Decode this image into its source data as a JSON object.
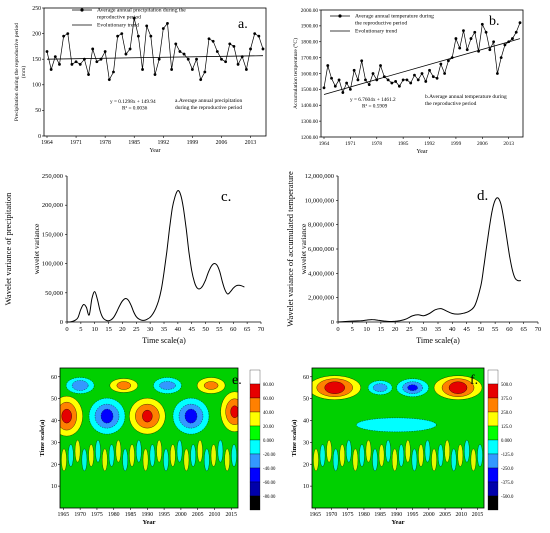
{
  "chart_data": [
    {
      "id": "a",
      "type": "line",
      "panel_label": "a.",
      "x": [
        1964,
        1965,
        1966,
        1967,
        1968,
        1969,
        1970,
        1971,
        1972,
        1973,
        1974,
        1975,
        1976,
        1977,
        1978,
        1979,
        1980,
        1981,
        1982,
        1983,
        1984,
        1985,
        1986,
        1987,
        1988,
        1989,
        1990,
        1991,
        1992,
        1993,
        1994,
        1995,
        1996,
        1997,
        1998,
        1999,
        2000,
        2001,
        2002,
        2003,
        2004,
        2005,
        2006,
        2007,
        2008,
        2009,
        2010,
        2011,
        2012,
        2013,
        2014,
        2015,
        2016
      ],
      "series": [
        {
          "name": "Average annual precipitation during the reproductive period",
          "values": [
            165,
            130,
            155,
            140,
            195,
            200,
            140,
            145,
            140,
            150,
            120,
            170,
            145,
            150,
            165,
            110,
            125,
            195,
            200,
            160,
            170,
            230,
            195,
            130,
            215,
            195,
            120,
            150,
            210,
            220,
            130,
            180,
            165,
            160,
            150,
            130,
            150,
            110,
            125,
            190,
            185,
            165,
            150,
            145,
            180,
            175,
            140,
            155,
            130,
            170,
            200,
            195,
            170
          ]
        },
        {
          "name": "Evolutionary trend",
          "fit": {
            "slope": 0.1298,
            "intercept": 149.94
          }
        }
      ],
      "ylabel": "Precipitation during the reproductive period (mm)",
      "xlabel": "Year",
      "ylim": [
        0,
        250
      ],
      "yticks": [
        "0",
        "50",
        "100",
        "150",
        "200",
        "250"
      ],
      "xticks": [
        "1964",
        "1971",
        "1978",
        "1985",
        "1992",
        "1999",
        "2006",
        "2013"
      ],
      "equation": "y = 0.1298x + 149.94",
      "r2": "R² = 0.0036",
      "annotation": "a.Average annual precipitation during the reproductive period",
      "legend": "top-left"
    },
    {
      "id": "b",
      "type": "line",
      "panel_label": "b.",
      "x": [
        1964,
        1965,
        1966,
        1967,
        1968,
        1969,
        1970,
        1971,
        1972,
        1973,
        1974,
        1975,
        1976,
        1977,
        1978,
        1979,
        1980,
        1981,
        1982,
        1983,
        1984,
        1985,
        1986,
        1987,
        1988,
        1989,
        1990,
        1991,
        1992,
        1993,
        1994,
        1995,
        1996,
        1997,
        1998,
        1999,
        2000,
        2001,
        2002,
        2003,
        2004,
        2005,
        2006,
        2007,
        2008,
        2009,
        2010,
        2011,
        2012,
        2013,
        2014,
        2015,
        2016
      ],
      "series": [
        {
          "name": "Average annual temperature during the reproductive period",
          "values": [
            1510,
            1650,
            1570,
            1520,
            1560,
            1480,
            1540,
            1500,
            1620,
            1560,
            1680,
            1560,
            1530,
            1600,
            1560,
            1650,
            1580,
            1560,
            1540,
            1550,
            1520,
            1560,
            1560,
            1540,
            1590,
            1560,
            1600,
            1550,
            1620,
            1580,
            1570,
            1660,
            1600,
            1680,
            1700,
            1820,
            1760,
            1870,
            1750,
            1820,
            1860,
            1740,
            1910,
            1860,
            1750,
            1800,
            1600,
            1700,
            1780,
            1800,
            1820,
            1860,
            1920
          ]
        },
        {
          "name": "Evolutionary trend",
          "fit": {
            "slope": 6.7604,
            "intercept": 1461.2
          }
        }
      ],
      "ylabel": "Accumulation temperature (°C)",
      "xlabel": "Year",
      "ylim": [
        1200,
        2000
      ],
      "yticks": [
        "1200.00",
        "1300.00",
        "1400.00",
        "1500.00",
        "1600.00",
        "1700.00",
        "1800.00",
        "1900.00",
        "2000.00"
      ],
      "xticks": [
        "1964",
        "1971",
        "1978",
        "1985",
        "1992",
        "1999",
        "2006",
        "2013"
      ],
      "equation": "y = 6.7604x + 1461.2",
      "r2": "R² = 0.5909",
      "annotation": "b.Average annual temperature during the reproductive period",
      "legend": "top-left"
    },
    {
      "id": "c",
      "type": "line",
      "panel_label": "c.",
      "x": [
        0,
        1,
        2,
        3,
        4,
        5,
        6,
        7,
        8,
        9,
        10,
        11,
        12,
        13,
        14,
        15,
        16,
        17,
        18,
        19,
        20,
        21,
        22,
        23,
        24,
        25,
        26,
        27,
        28,
        29,
        30,
        31,
        32,
        33,
        34,
        35,
        36,
        37,
        38,
        39,
        40,
        41,
        42,
        43,
        44,
        45,
        46,
        47,
        48,
        49,
        50,
        51,
        52,
        53,
        54,
        55,
        56,
        57,
        58,
        59,
        60,
        61,
        62,
        63,
        64
      ],
      "series": [
        {
          "name": "wavelet variance",
          "values": [
            0,
            0,
            1000,
            3000,
            8000,
            22000,
            30000,
            25000,
            12000,
            40000,
            52000,
            38000,
            18000,
            7000,
            3000,
            2000,
            4000,
            9000,
            18000,
            28000,
            36000,
            40000,
            38000,
            30000,
            18000,
            9000,
            5000,
            3000,
            3000,
            5000,
            8000,
            14000,
            23000,
            36000,
            55000,
            85000,
            120000,
            160000,
            195000,
            215000,
            225000,
            218000,
            195000,
            160000,
            120000,
            88000,
            68000,
            58000,
            57000,
            62000,
            72000,
            85000,
            95000,
            100000,
            98000,
            88000,
            70000,
            55000,
            48000,
            52000,
            58000,
            62000,
            63000,
            62000,
            60000
          ]
        }
      ],
      "ylabel": "wavelet variance",
      "ylabel_outer": "Wavelet variance of precipitation",
      "xlabel": "Time scale(a)",
      "ylim": [
        0,
        250000
      ],
      "xlim": [
        0,
        70
      ],
      "yticks": [
        "0",
        "50,000",
        "100,000",
        "150,000",
        "200,000",
        "250,000"
      ],
      "xticks": [
        "0",
        "5",
        "10",
        "15",
        "20",
        "25",
        "30",
        "35",
        "40",
        "45",
        "50",
        "55",
        "60",
        "65",
        "70"
      ]
    },
    {
      "id": "d",
      "type": "line",
      "panel_label": "d.",
      "x": [
        0,
        2,
        4,
        6,
        8,
        10,
        12,
        14,
        16,
        18,
        20,
        22,
        24,
        26,
        28,
        30,
        32,
        34,
        36,
        38,
        40,
        42,
        44,
        46,
        48,
        50,
        51,
        52,
        53,
        54,
        55,
        56,
        57,
        58,
        59,
        60,
        61,
        62,
        63,
        64
      ],
      "series": [
        {
          "name": "wavelet variance",
          "values": [
            0,
            30000,
            60000,
            80000,
            100000,
            160000,
            200000,
            150000,
            80000,
            40000,
            60000,
            120000,
            260000,
            500000,
            600000,
            520000,
            700000,
            1000000,
            1100000,
            900000,
            700000,
            650000,
            720000,
            900000,
            1400000,
            3000000,
            4500000,
            6200000,
            7800000,
            9200000,
            10000000,
            10200000,
            9700000,
            8500000,
            7000000,
            5500000,
            4300000,
            3600000,
            3400000,
            3400000
          ]
        }
      ],
      "ylabel": "wavelet variance",
      "ylabel_outer": "Wavelet variance of accumulated temperature",
      "xlabel": "Time scale(a)",
      "ylim": [
        0,
        12000000
      ],
      "xlim": [
        0,
        70
      ],
      "yticks": [
        "0",
        "2,000,000",
        "4,000,000",
        "6,000,000",
        "8,000,000",
        "10,000,000",
        "12,000,000"
      ],
      "xticks": [
        "0",
        "5",
        "10",
        "15",
        "20",
        "25",
        "30",
        "35",
        "40",
        "45",
        "50",
        "55",
        "60",
        "65",
        "70"
      ]
    },
    {
      "id": "e",
      "type": "heatmap",
      "panel_label": "e.",
      "xlabel": "Year",
      "ylabel": "Time scale(a)",
      "xticks": [
        "1965",
        "1970",
        "1975",
        "1980",
        "1985",
        "1990",
        "1995",
        "2000",
        "2005",
        "2010",
        "2015"
      ],
      "yticks": [
        "10",
        "20",
        "30",
        "40",
        "50",
        "60"
      ],
      "colorbar": [
        "80.00",
        "60.00",
        "40.00",
        "20.00",
        "0.000",
        "-20.00",
        "-40.00",
        "-60.00",
        "-80.00"
      ],
      "colorbar_colors": [
        "#ffffff",
        "#e60000",
        "#ff8000",
        "#ffff00",
        "#00ff00",
        "#00ffff",
        "#3399ff",
        "#0000ff",
        "#0000aa",
        "#000000"
      ]
    },
    {
      "id": "f",
      "type": "heatmap",
      "panel_label": "f.",
      "xlabel": "Year",
      "ylabel": "Time scale(a)",
      "xticks": [
        "1965",
        "1970",
        "1975",
        "1980",
        "1985",
        "1990",
        "1995",
        "2000",
        "2005",
        "2010",
        "2015"
      ],
      "yticks": [
        "10",
        "20",
        "30",
        "40",
        "50",
        "60"
      ],
      "colorbar": [
        "500.0",
        "375.0",
        "250.0",
        "125.0",
        "0.000",
        "-125.0",
        "-250.0",
        "-375.0",
        "-500.0"
      ],
      "colorbar_colors": [
        "#ffffff",
        "#e60000",
        "#ff8000",
        "#ffff00",
        "#00ff00",
        "#00ffff",
        "#3399ff",
        "#0000ff",
        "#0000aa",
        "#000000"
      ]
    }
  ]
}
